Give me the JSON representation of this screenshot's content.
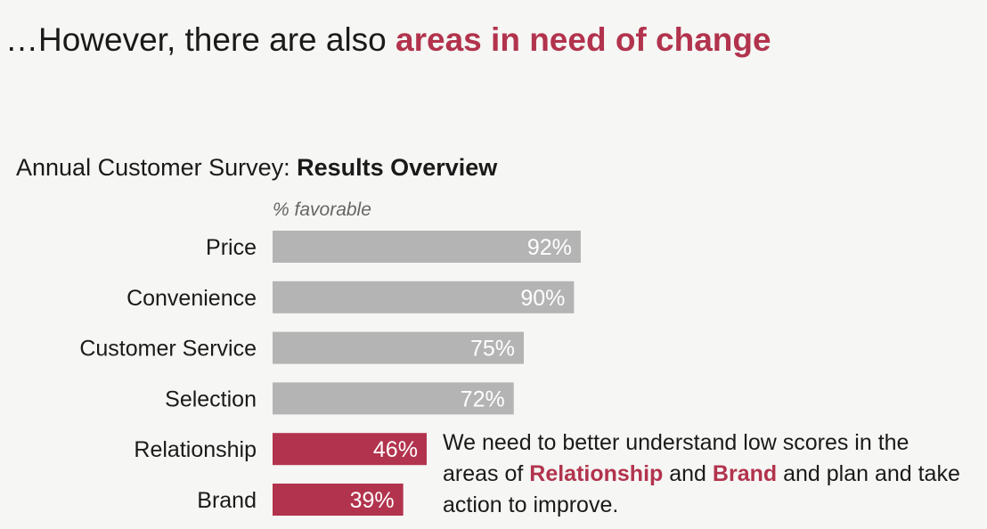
{
  "headline": {
    "prefix": "…However, there are also ",
    "emphasis": "areas in need of change"
  },
  "chart_title": {
    "prefix": "Annual Customer Survey: ",
    "bold": "Results Overview"
  },
  "note": {
    "part1": "We need to better understand low scores in the areas of ",
    "highlight1": "Relationship",
    "part2": " and ",
    "highlight2": "Brand",
    "part3": " and plan and take action to improve."
  },
  "colors": {
    "accent": "#b2334d",
    "bar_neutral": "#b4b4b4",
    "bar_highlight": "#b2334d"
  },
  "chart_data": {
    "type": "bar",
    "orientation": "horizontal",
    "unit_label": "% favorable",
    "categories": [
      "Price",
      "Convenience",
      "Customer Service",
      "Selection",
      "Relationship",
      "Brand"
    ],
    "values": [
      92,
      90,
      75,
      72,
      46,
      39
    ],
    "value_labels": [
      "92%",
      "90%",
      "75%",
      "72%",
      "46%",
      "39%"
    ],
    "highlighted": [
      false,
      false,
      false,
      false,
      true,
      true
    ],
    "xlim": [
      0,
      100
    ],
    "grid": false,
    "legend": "none"
  }
}
